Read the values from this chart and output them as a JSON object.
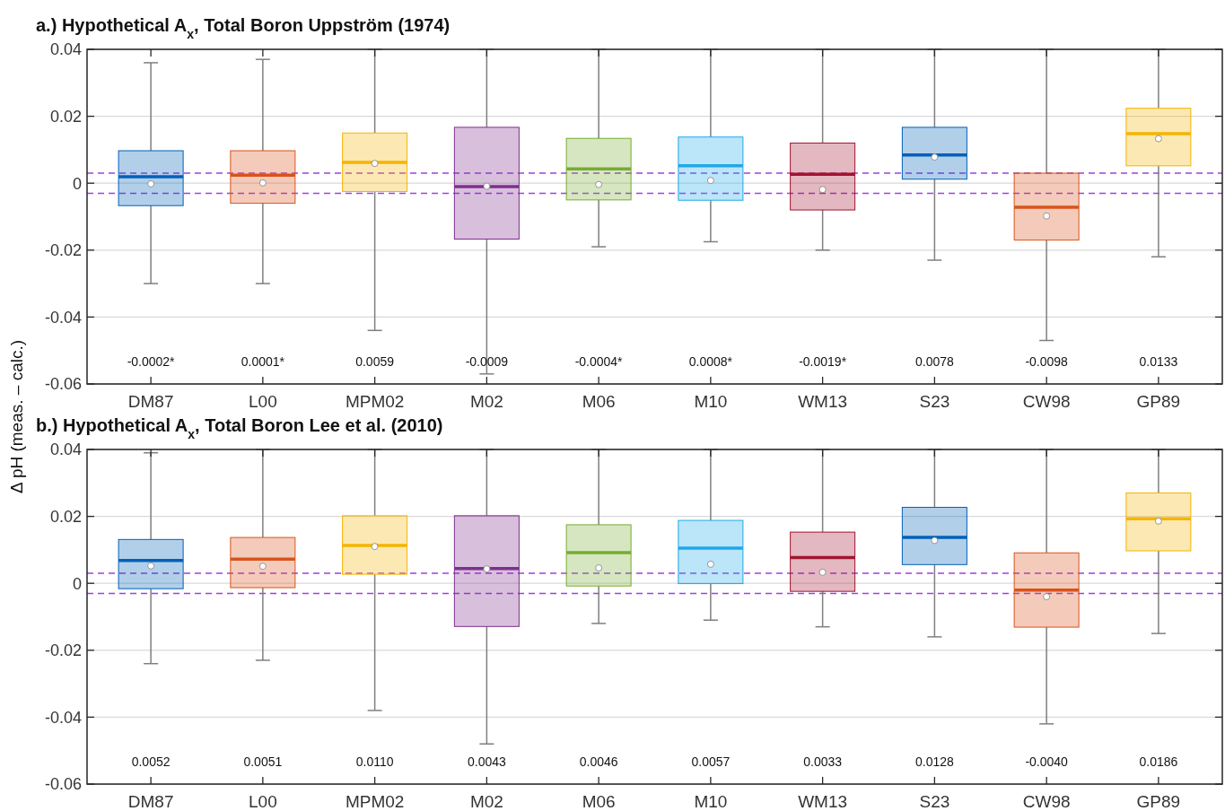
{
  "chart_data": [
    {
      "type": "box",
      "title": "a.) Hypothetical A$_{x}$, Total Boron Uppström (1974)",
      "ylabel": "Δ pH (meas. – calc.)",
      "categories": [
        "DM87",
        "L00",
        "MPM02",
        "M02",
        "M06",
        "M10",
        "WM13",
        "S23",
        "CW98",
        "GP89"
      ],
      "colors": [
        "#0060b8",
        "#d95319",
        "#f5b400",
        "#7e2f8e",
        "#77ac30",
        "#1fa8e8",
        "#a2142f",
        "#0060b8",
        "#d95319",
        "#f5b400"
      ],
      "boxes": [
        {
          "low": -0.03,
          "q1": -0.0067,
          "median": -0.0002,
          "q3": 0.0097,
          "high": 0.036,
          "mean": 0.0019
        },
        {
          "low": -0.03,
          "q1": -0.006,
          "median": 0.0001,
          "q3": 0.0097,
          "high": 0.037,
          "mean": 0.0024
        },
        {
          "low": -0.044,
          "q1": -0.0025,
          "median": 0.0059,
          "q3": 0.015,
          "high": 0.04,
          "mean": 0.0062
        },
        {
          "low": -0.057,
          "q1": -0.0167,
          "median": -0.0009,
          "q3": 0.0167,
          "high": 0.04,
          "mean": -0.001
        },
        {
          "low": -0.019,
          "q1": -0.005,
          "median": -0.0004,
          "q3": 0.0134,
          "high": 0.04,
          "mean": 0.0043
        },
        {
          "low": -0.0175,
          "q1": -0.0051,
          "median": 0.0008,
          "q3": 0.0138,
          "high": 0.04,
          "mean": 0.0052
        },
        {
          "low": -0.02,
          "q1": -0.008,
          "median": -0.0019,
          "q3": 0.012,
          "high": 0.04,
          "mean": 0.0027
        },
        {
          "low": -0.023,
          "q1": 0.0012,
          "median": 0.0078,
          "q3": 0.0167,
          "high": 0.04,
          "mean": 0.0084
        },
        {
          "low": -0.047,
          "q1": -0.017,
          "median": -0.0098,
          "q3": 0.003,
          "high": 0.04,
          "mean": -0.0072
        },
        {
          "low": -0.022,
          "q1": 0.0052,
          "median": 0.0133,
          "q3": 0.0224,
          "high": 0.04,
          "mean": 0.0148
        }
      ],
      "ylim": [
        -0.06,
        0.04
      ],
      "yticks": [
        -0.06,
        -0.04,
        -0.02,
        0,
        0.02,
        0.04
      ],
      "grid": "y",
      "ref_lines": [
        {
          "axis": "y",
          "value": 0.003,
          "color": "#a040e0",
          "line_style": "dashed"
        },
        {
          "axis": "y",
          "value": -0.003,
          "color": "#a040e0",
          "line_style": "dashed"
        }
      ],
      "annotations": [
        "-0.0002*",
        "0.0001*",
        "0.0059",
        "-0.0009",
        "-0.0004*",
        "0.0008*",
        "-0.0019*",
        "0.0078",
        "-0.0098",
        "0.0133"
      ]
    },
    {
      "type": "box",
      "title": "b.) Hypothetical A$_{x}$, Total Boron Lee et al. (2010)",
      "categories": [
        "DM87",
        "L00",
        "MPM02",
        "M02",
        "M06",
        "M10",
        "WM13",
        "S23",
        "CW98",
        "GP89"
      ],
      "colors": [
        "#0060b8",
        "#d95319",
        "#f5b400",
        "#7e2f8e",
        "#77ac30",
        "#1fa8e8",
        "#a2142f",
        "#0060b8",
        "#d95319",
        "#f5b400"
      ],
      "boxes": [
        {
          "low": -0.024,
          "q1": -0.0016,
          "median": 0.0052,
          "q3": 0.0131,
          "high": 0.039,
          "mean": 0.0068
        },
        {
          "low": -0.023,
          "q1": -0.0013,
          "median": 0.0051,
          "q3": 0.0137,
          "high": 0.04,
          "mean": 0.0072
        },
        {
          "low": -0.038,
          "q1": 0.0027,
          "median": 0.011,
          "q3": 0.0202,
          "high": 0.04,
          "mean": 0.0113
        },
        {
          "low": -0.048,
          "q1": -0.0129,
          "median": 0.0043,
          "q3": 0.0202,
          "high": 0.04,
          "mean": 0.0044
        },
        {
          "low": -0.012,
          "q1": -0.0008,
          "median": 0.0046,
          "q3": 0.0175,
          "high": 0.04,
          "mean": 0.0092
        },
        {
          "low": -0.011,
          "q1": -0.0001,
          "median": 0.0057,
          "q3": 0.0188,
          "high": 0.04,
          "mean": 0.0105
        },
        {
          "low": -0.013,
          "q1": -0.0024,
          "median": 0.0033,
          "q3": 0.0153,
          "high": 0.04,
          "mean": 0.0077
        },
        {
          "low": -0.016,
          "q1": 0.0056,
          "median": 0.0128,
          "q3": 0.0227,
          "high": 0.04,
          "mean": 0.0137
        },
        {
          "low": -0.042,
          "q1": -0.0131,
          "median": -0.004,
          "q3": 0.0091,
          "high": 0.04,
          "mean": -0.002
        },
        {
          "low": -0.015,
          "q1": 0.0097,
          "median": 0.0186,
          "q3": 0.027,
          "high": 0.04,
          "mean": 0.0193
        }
      ],
      "ylim": [
        -0.06,
        0.04
      ],
      "yticks": [
        -0.06,
        -0.04,
        -0.02,
        0,
        0.02,
        0.04
      ],
      "grid": "y",
      "ref_lines": [
        {
          "axis": "y",
          "value": 0.003,
          "color": "#a040e0",
          "line_style": "dashed"
        },
        {
          "axis": "y",
          "value": -0.003,
          "color": "#a040e0",
          "line_style": "dashed"
        }
      ],
      "annotations": [
        "0.0052",
        "0.0051",
        "0.0110",
        "0.0043",
        "0.0046",
        "0.0057",
        "0.0033",
        "0.0128",
        "-0.0040",
        "0.0186"
      ]
    }
  ]
}
